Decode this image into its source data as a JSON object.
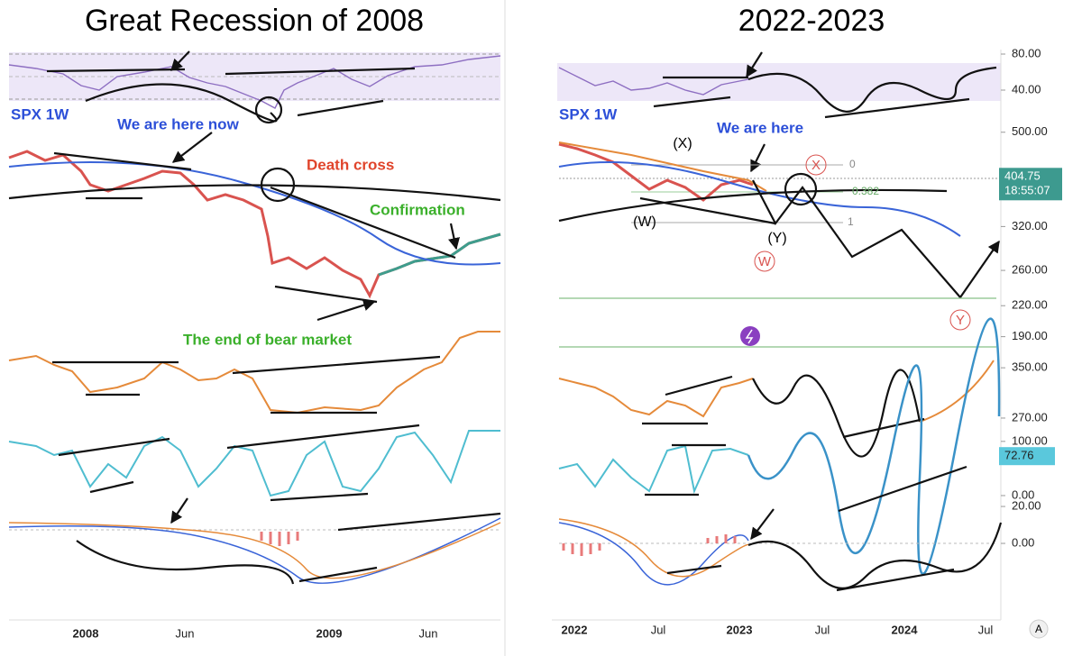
{
  "left": {
    "title": "Great Recession of 2008",
    "ticker": "SPX 1W",
    "annotations": [
      "We are here now",
      "Death cross",
      "Confirmation",
      "The end of bear market"
    ],
    "x_labels": [
      "2008",
      "Jun",
      "2009",
      "Jun"
    ]
  },
  "right": {
    "title": "2022-2023",
    "ticker": "SPX 1W",
    "annotation": "We are here",
    "wave_labels": [
      "(X)",
      "(W)",
      "(Y)",
      "W",
      "X",
      "Y"
    ],
    "fib_labels": [
      "0",
      "0.382",
      "1"
    ],
    "x_labels": [
      "2022",
      "Jul",
      "2023",
      "Jul",
      "2024",
      "Jul"
    ],
    "badge": "A",
    "panels": {
      "price": {
        "log": true,
        "ylim": [
          181,
          537
        ],
        "yticks": [
          {
            "value": 500,
            "label": "500.00"
          },
          {
            "value": 320,
            "label": "320.00"
          },
          {
            "value": 260,
            "label": "260.00"
          },
          {
            "value": 220,
            "label": "220.00"
          },
          {
            "value": 190,
            "label": "190.00"
          }
        ],
        "last": {
          "value": 404.75,
          "label": "404.75"
        },
        "countdown": "18:55:07"
      },
      "rsi": {
        "ylim": [
          25,
          82
        ],
        "yticks": [
          {
            "value": 80,
            "label": "80.00"
          },
          {
            "value": 40,
            "label": "40.00"
          }
        ]
      },
      "obv": {
        "ylim": [
          247,
          376
        ],
        "yticks": [
          {
            "value": 350,
            "label": "350.00"
          },
          {
            "value": 270,
            "label": "270.00"
          }
        ]
      },
      "stoch": {
        "ylim": [
          -25,
          113
        ],
        "yticks": [
          {
            "value": 100,
            "label": "100.00"
          },
          {
            "value": 0,
            "label": "0.00"
          }
        ],
        "last": 72.76
      },
      "macd": {
        "ylim": [
          -40,
          21
        ],
        "yticks": [
          {
            "value": 20,
            "label": "20.00"
          },
          {
            "value": 0,
            "label": "0.00"
          }
        ]
      }
    }
  }
}
